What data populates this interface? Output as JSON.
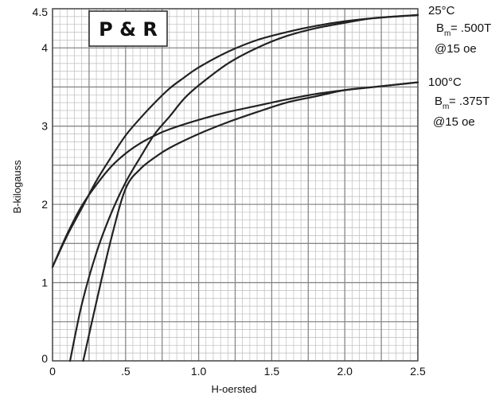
{
  "chart_data": {
    "type": "line",
    "title": "P & R",
    "xlabel": "H-oersted",
    "ylabel": "B-kilogauss",
    "xlim": [
      0,
      2.5
    ],
    "ylim": [
      0,
      4.5
    ],
    "grid": true,
    "x_tick_labels": [
      {
        "value": 0,
        "label": "0"
      },
      {
        "value": 0.5,
        "label": ".5"
      },
      {
        "value": 1.0,
        "label": "1.0"
      },
      {
        "value": 1.5,
        "label": "1.5"
      },
      {
        "value": 2.0,
        "label": "2.0"
      },
      {
        "value": 2.5,
        "label": "2.5"
      }
    ],
    "y_tick_labels": [
      {
        "value": 0,
        "label": "0"
      },
      {
        "value": 1,
        "label": "1"
      },
      {
        "value": 2,
        "label": "2"
      },
      {
        "value": 3,
        "label": "3"
      },
      {
        "value": 4,
        "label": "4"
      },
      {
        "value": 4.5,
        "label": "4.5"
      }
    ],
    "series": [
      {
        "name": "25°C upper",
        "color": "#222222",
        "x": [
          0,
          0.1,
          0.2,
          0.3,
          0.4,
          0.5,
          0.6,
          0.7,
          0.8,
          0.9,
          1.0,
          1.2,
          1.4,
          1.6,
          1.8,
          2.0,
          2.2,
          2.5
        ],
        "y": [
          1.2,
          1.6,
          1.95,
          2.3,
          2.6,
          2.88,
          3.1,
          3.3,
          3.48,
          3.62,
          3.75,
          3.95,
          4.1,
          4.2,
          4.28,
          4.34,
          4.38,
          4.42
        ]
      },
      {
        "name": "25°C lower",
        "color": "#222222",
        "x": [
          0.12,
          0.2,
          0.3,
          0.4,
          0.5,
          0.6,
          0.7,
          0.8,
          0.9,
          1.0,
          1.2,
          1.4,
          1.6,
          1.8,
          2.0,
          2.2,
          2.5
        ],
        "y": [
          0,
          0.72,
          1.38,
          1.88,
          2.28,
          2.6,
          2.9,
          3.12,
          3.35,
          3.52,
          3.8,
          4.0,
          4.15,
          4.25,
          4.32,
          4.38,
          4.42
        ]
      },
      {
        "name": "100°C upper",
        "color": "#222222",
        "x": [
          0,
          0.1,
          0.2,
          0.3,
          0.4,
          0.5,
          0.6,
          0.7,
          0.8,
          1.0,
          1.2,
          1.4,
          1.6,
          1.8,
          2.0,
          2.2,
          2.5
        ],
        "y": [
          1.2,
          1.62,
          1.98,
          2.25,
          2.48,
          2.65,
          2.78,
          2.88,
          2.96,
          3.08,
          3.18,
          3.26,
          3.34,
          3.41,
          3.46,
          3.5,
          3.56
        ]
      },
      {
        "name": "100°C lower",
        "color": "#222222",
        "x": [
          0.21,
          0.3,
          0.4,
          0.5,
          0.6,
          0.7,
          0.8,
          1.0,
          1.2,
          1.4,
          1.6,
          1.8,
          2.0,
          2.2,
          2.5
        ],
        "y": [
          0,
          0.75,
          1.55,
          2.2,
          2.45,
          2.6,
          2.72,
          2.9,
          3.05,
          3.18,
          3.3,
          3.38,
          3.46,
          3.5,
          3.56
        ]
      }
    ],
    "annotations": [
      {
        "id": "t25",
        "text": "25°C"
      },
      {
        "id": "bm25_b",
        "text": "B"
      },
      {
        "id": "bm25_sub",
        "text": "m"
      },
      {
        "id": "bm25_val",
        "text": "= .500T"
      },
      {
        "id": "at25",
        "text": "@15 oe"
      },
      {
        "id": "t100",
        "text": "100°C"
      },
      {
        "id": "bm100_b",
        "text": "B"
      },
      {
        "id": "bm100_sub",
        "text": "m"
      },
      {
        "id": "bm100_val",
        "text": "= .375T"
      },
      {
        "id": "at100",
        "text": "@15 oe"
      }
    ]
  }
}
